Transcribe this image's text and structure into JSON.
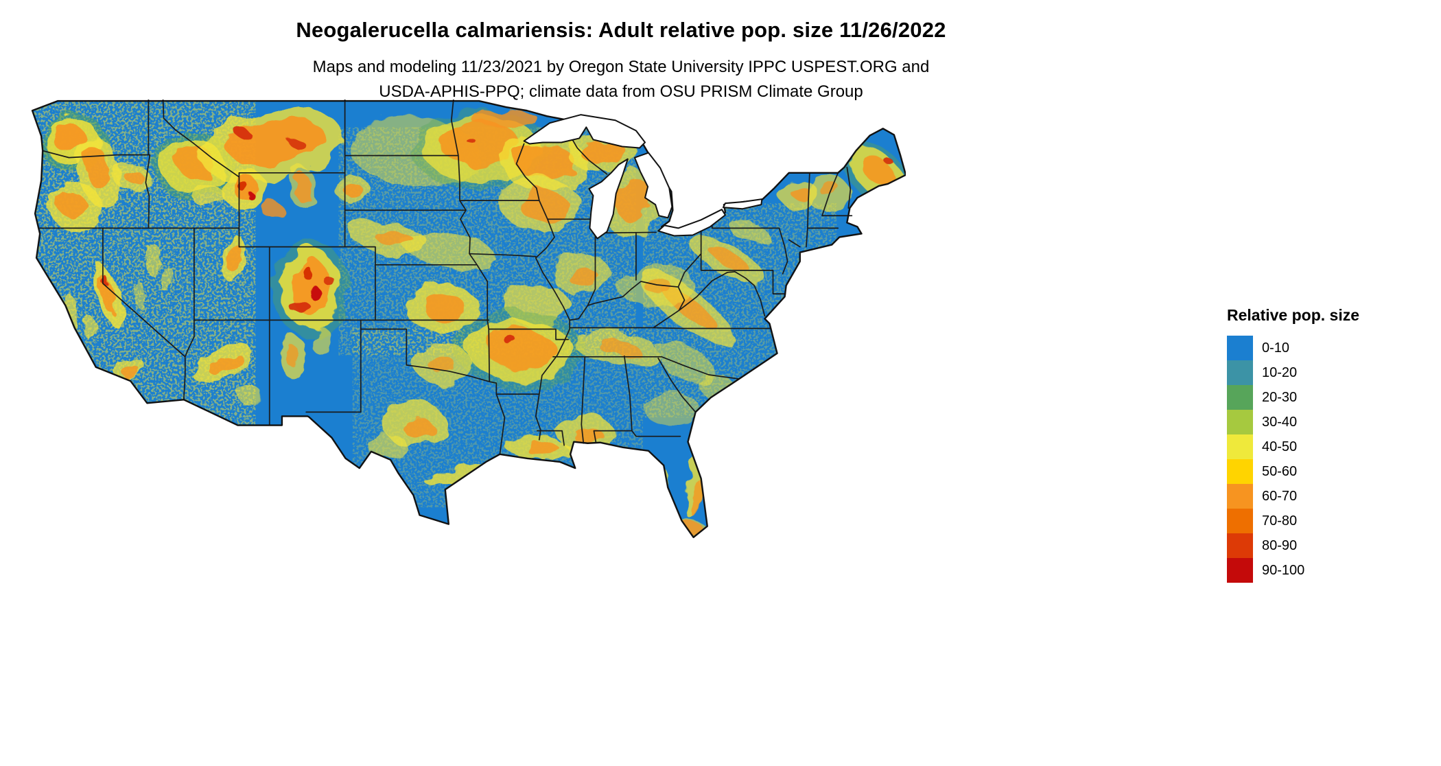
{
  "header": {
    "title": "Neogalerucella calmariensis: Adult relative pop. size 11/26/2022",
    "subtitle_line1": "Maps and modeling 11/23/2021 by Oregon State University IPPC USPEST.ORG and",
    "subtitle_line2": "USDA-APHIS-PPQ; climate data from OSU PRISM Climate Group"
  },
  "legend": {
    "title": "Relative pop. size",
    "items": [
      {
        "label": "0-10",
        "color": "#1B7FD0"
      },
      {
        "label": "10-20",
        "color": "#3C93A6"
      },
      {
        "label": "20-30",
        "color": "#57A55A"
      },
      {
        "label": "30-40",
        "color": "#A6C93F"
      },
      {
        "label": "40-50",
        "color": "#EFE93B"
      },
      {
        "label": "50-60",
        "color": "#FFD400"
      },
      {
        "label": "60-70",
        "color": "#F79420"
      },
      {
        "label": "70-80",
        "color": "#EE6F00"
      },
      {
        "label": "80-90",
        "color": "#DD3A06"
      },
      {
        "label": "90-100",
        "color": "#C40A0A"
      }
    ]
  },
  "map": {
    "base_color": "#1B7FD0",
    "border_color": "#111111",
    "lake_color": "#FFFFFF",
    "speckle_color": "#F2E33A",
    "speckle_zones": [
      [
        0,
        0,
        330,
        470,
        0.5
      ],
      [
        450,
        40,
        430,
        330,
        0.3
      ],
      [
        890,
        150,
        280,
        310,
        0.3
      ],
      [
        470,
        330,
        420,
        260,
        0.25
      ]
    ],
    "hotspots": [
      [
        66,
        62,
        50,
        42,
        0,
        "#57A55A",
        0.5
      ],
      [
        64,
        60,
        40,
        34,
        0,
        "#F2E33A",
        0.85
      ],
      [
        60,
        56,
        24,
        20,
        0,
        "#F79420",
        0.9
      ],
      [
        104,
        105,
        30,
        52,
        -10,
        "#F2E33A",
        0.8
      ],
      [
        102,
        100,
        16,
        32,
        -10,
        "#F79420",
        0.85
      ],
      [
        70,
        155,
        38,
        34,
        0,
        "#F2E33A",
        0.8
      ],
      [
        62,
        150,
        20,
        18,
        0,
        "#F79420",
        0.85
      ],
      [
        150,
        112,
        28,
        20,
        15,
        "#F2E33A",
        0.75
      ],
      [
        152,
        110,
        14,
        10,
        15,
        "#F79420",
        0.8
      ],
      [
        240,
        95,
        58,
        50,
        0,
        "#57A55A",
        0.45
      ],
      [
        238,
        95,
        46,
        40,
        0,
        "#F2E33A",
        0.8
      ],
      [
        242,
        90,
        26,
        24,
        0,
        "#F79420",
        0.85
      ],
      [
        352,
        66,
        105,
        50,
        -10,
        "#F2E33A",
        0.8
      ],
      [
        360,
        62,
        70,
        33,
        -10,
        "#F79420",
        0.9
      ],
      [
        312,
        50,
        10,
        6,
        0,
        "#D42B04",
        0.9
      ],
      [
        392,
        66,
        12,
        7,
        15,
        "#D42B04",
        0.85
      ],
      [
        262,
        140,
        22,
        18,
        0,
        "#F2E33A",
        0.7
      ],
      [
        312,
        128,
        34,
        28,
        0,
        "#F2E33A",
        0.85
      ],
      [
        314,
        126,
        20,
        16,
        0,
        "#F79420",
        0.9
      ],
      [
        308,
        122,
        8,
        6,
        0,
        "#D42B04",
        0.95
      ],
      [
        322,
        138,
        6,
        4,
        0,
        "#C40A0A",
        0.95
      ],
      [
        355,
        160,
        18,
        13,
        25,
        "#F79420",
        0.8
      ],
      [
        398,
        128,
        20,
        28,
        0,
        "#F2E33A",
        0.6
      ],
      [
        398,
        128,
        13,
        20,
        0,
        "#F79420",
        0.8
      ],
      [
        408,
        272,
        55,
        70,
        0,
        "#57A55A",
        0.4
      ],
      [
        408,
        272,
        44,
        58,
        0,
        "#F2E33A",
        0.85
      ],
      [
        410,
        272,
        28,
        42,
        0,
        "#F79420",
        0.9
      ],
      [
        404,
        250,
        7,
        9,
        0,
        "#D42B04",
        0.95
      ],
      [
        414,
        278,
        8,
        10,
        0,
        "#C40A0A",
        0.95
      ],
      [
        396,
        302,
        14,
        11,
        0,
        "#D42B04",
        0.9
      ],
      [
        436,
        262,
        8,
        6,
        0,
        "#D42B04",
        0.85
      ],
      [
        300,
        232,
        16,
        38,
        0,
        "#F2E33A",
        0.8
      ],
      [
        300,
        230,
        9,
        24,
        0,
        "#F79420",
        0.8
      ],
      [
        182,
        232,
        11,
        24,
        0,
        "#F2E33A",
        0.6
      ],
      [
        204,
        262,
        9,
        20,
        0,
        "#F2E33A",
        0.55
      ],
      [
        162,
        282,
        9,
        18,
        0,
        "#F2E33A",
        0.5
      ],
      [
        118,
        285,
        16,
        48,
        -18,
        "#F2E33A",
        0.85
      ],
      [
        116,
        283,
        9,
        30,
        -18,
        "#F79420",
        0.85
      ],
      [
        112,
        262,
        4,
        7,
        0,
        "#D42B04",
        0.9
      ],
      [
        62,
        305,
        10,
        26,
        -12,
        "#F2E33A",
        0.7
      ],
      [
        92,
        332,
        9,
        22,
        -15,
        "#F2E33A",
        0.65
      ],
      [
        146,
        392,
        26,
        14,
        -20,
        "#F2E33A",
        0.75
      ],
      [
        152,
        396,
        13,
        7,
        -20,
        "#F79420",
        0.8
      ],
      [
        282,
        382,
        46,
        22,
        -28,
        "#F2E33A",
        0.8
      ],
      [
        286,
        382,
        26,
        11,
        -28,
        "#F79420",
        0.8
      ],
      [
        322,
        428,
        17,
        11,
        -15,
        "#F2E33A",
        0.6
      ],
      [
        384,
        372,
        18,
        32,
        0,
        "#F2E33A",
        0.7
      ],
      [
        382,
        370,
        9,
        16,
        0,
        "#F79420",
        0.7
      ],
      [
        424,
        348,
        13,
        22,
        0,
        "#F2E33A",
        0.6
      ],
      [
        468,
        128,
        24,
        20,
        0,
        "#F2E33A",
        0.7
      ],
      [
        468,
        128,
        13,
        11,
        0,
        "#F79420",
        0.85
      ],
      [
        560,
        75,
        95,
        50,
        5,
        "#F2E33A",
        0.5
      ],
      [
        655,
        72,
        100,
        58,
        0,
        "#57A55A",
        0.35
      ],
      [
        655,
        70,
        85,
        48,
        0,
        "#F2E33A",
        0.75
      ],
      [
        655,
        65,
        58,
        32,
        0,
        "#F79420",
        0.85
      ],
      [
        690,
        28,
        48,
        14,
        0,
        "#F79420",
        0.8
      ],
      [
        640,
        58,
        6,
        4,
        0,
        "#D42B04",
        0.85
      ],
      [
        748,
        92,
        62,
        40,
        0,
        "#F2E33A",
        0.75
      ],
      [
        748,
        90,
        42,
        26,
        0,
        "#F79420",
        0.85
      ],
      [
        832,
        78,
        52,
        26,
        0,
        "#F2E33A",
        0.75
      ],
      [
        832,
        76,
        34,
        16,
        0,
        "#F79420",
        0.85
      ],
      [
        872,
        150,
        42,
        50,
        0,
        "#F2E33A",
        0.7
      ],
      [
        876,
        145,
        26,
        34,
        0,
        "#F79420",
        0.8
      ],
      [
        742,
        152,
        62,
        40,
        10,
        "#F2E33A",
        0.7
      ],
      [
        748,
        155,
        38,
        24,
        10,
        "#F79420",
        0.8
      ],
      [
        610,
        218,
        70,
        26,
        12,
        "#F2E33A",
        0.6
      ],
      [
        598,
        300,
        52,
        36,
        0,
        "#F2E33A",
        0.8
      ],
      [
        602,
        300,
        30,
        20,
        0,
        "#F79420",
        0.85
      ],
      [
        522,
        200,
        55,
        24,
        8,
        "#F2E33A",
        0.7
      ],
      [
        530,
        200,
        28,
        12,
        8,
        "#F79420",
        0.75
      ],
      [
        738,
        298,
        46,
        30,
        0,
        "#F2E33A",
        0.7
      ],
      [
        800,
        252,
        42,
        30,
        0,
        "#F2E33A",
        0.65
      ],
      [
        803,
        256,
        22,
        14,
        0,
        "#F79420",
        0.75
      ],
      [
        712,
        362,
        95,
        58,
        5,
        "#57A55A",
        0.35
      ],
      [
        712,
        362,
        78,
        46,
        5,
        "#F2E33A",
        0.8
      ],
      [
        712,
        360,
        52,
        30,
        5,
        "#F79420",
        0.85
      ],
      [
        700,
        350,
        9,
        6,
        0,
        "#D42B04",
        0.9
      ],
      [
        600,
        382,
        42,
        28,
        0,
        "#F2E33A",
        0.7
      ],
      [
        602,
        386,
        20,
        11,
        0,
        "#F79420",
        0.7
      ],
      [
        560,
        470,
        45,
        33,
        0,
        "#F2E33A",
        0.75
      ],
      [
        566,
        476,
        22,
        14,
        0,
        "#F79420",
        0.8
      ],
      [
        522,
        502,
        28,
        18,
        0,
        "#F2E33A",
        0.6
      ],
      [
        640,
        542,
        68,
        14,
        -8,
        "#F2E33A",
        0.8
      ],
      [
        658,
        546,
        38,
        8,
        -8,
        "#F79420",
        0.8
      ],
      [
        742,
        506,
        50,
        16,
        4,
        "#F2E33A",
        0.8
      ],
      [
        748,
        508,
        26,
        9,
        4,
        "#F79420",
        0.8
      ],
      [
        806,
        482,
        40,
        28,
        0,
        "#F2E33A",
        0.75
      ],
      [
        810,
        486,
        22,
        14,
        0,
        "#F79420",
        0.8
      ],
      [
        852,
        360,
        62,
        24,
        8,
        "#F2E33A",
        0.65
      ],
      [
        856,
        360,
        30,
        11,
        8,
        "#F79420",
        0.7
      ],
      [
        952,
        300,
        88,
        26,
        38,
        "#F2E33A",
        0.7
      ],
      [
        956,
        300,
        48,
        13,
        38,
        "#F79420",
        0.75
      ],
      [
        1012,
        232,
        62,
        20,
        28,
        "#F2E33A",
        0.7
      ],
      [
        1016,
        232,
        32,
        10,
        28,
        "#F79420",
        0.75
      ],
      [
        908,
        268,
        56,
        32,
        0,
        "#F2E33A",
        0.5
      ],
      [
        912,
        270,
        20,
        11,
        0,
        "#F79420",
        0.6
      ],
      [
        1042,
        190,
        32,
        14,
        20,
        "#F2E33A",
        0.6
      ],
      [
        1114,
        136,
        28,
        22,
        0,
        "#F2E33A",
        0.7
      ],
      [
        1116,
        133,
        14,
        10,
        0,
        "#F79420",
        0.8
      ],
      [
        1158,
        136,
        32,
        26,
        0,
        "#F2E33A",
        0.65
      ],
      [
        1162,
        132,
        15,
        11,
        0,
        "#F79420",
        0.7
      ],
      [
        1228,
        108,
        62,
        36,
        42,
        "#57A55A",
        0.4
      ],
      [
        1228,
        106,
        52,
        28,
        42,
        "#F2E33A",
        0.8
      ],
      [
        1230,
        104,
        34,
        17,
        42,
        "#F79420",
        0.85
      ],
      [
        1248,
        92,
        6,
        4,
        0,
        "#D42B04",
        0.9
      ],
      [
        952,
        382,
        42,
        24,
        25,
        "#F2E33A",
        0.5
      ],
      [
        1002,
        420,
        36,
        20,
        30,
        "#F2E33A",
        0.5
      ],
      [
        932,
        448,
        40,
        24,
        0,
        "#F2E33A",
        0.45
      ],
      [
        916,
        560,
        12,
        42,
        -12,
        "#F2E33A",
        0.8
      ],
      [
        918,
        572,
        7,
        26,
        -12,
        "#F79420",
        0.75
      ],
      [
        964,
        560,
        10,
        46,
        8,
        "#F2E33A",
        0.8
      ],
      [
        966,
        575,
        6,
        28,
        8,
        "#F79420",
        0.75
      ],
      [
        950,
        624,
        34,
        16,
        0,
        "#F2E33A",
        0.6
      ],
      [
        952,
        622,
        26,
        12,
        0,
        "#F79420",
        0.8
      ]
    ]
  }
}
